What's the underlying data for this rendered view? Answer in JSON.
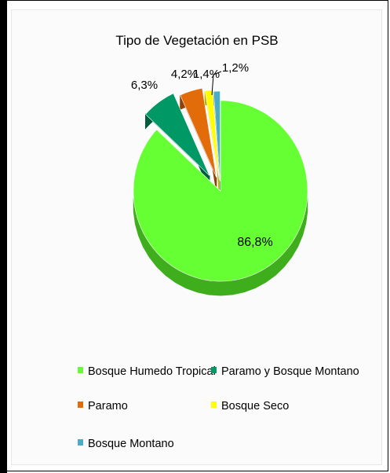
{
  "chart_data": {
    "type": "pie",
    "title": "Tipo de Vegetación en PSB",
    "slices": [
      {
        "label": "Bosque Humedo Tropical",
        "value": 86.8,
        "display": "86,8%",
        "color": "#66ff33",
        "dark": "#3fae1c"
      },
      {
        "label": "Paramo y Bosque Montano",
        "value": 6.3,
        "display": "6,3%",
        "color": "#009966",
        "dark": "#005c3d"
      },
      {
        "label": "Paramo",
        "value": 4.2,
        "display": "4,2%",
        "color": "#e26b0a",
        "dark": "#8f4206"
      },
      {
        "label": "Bosque Seco",
        "value": 1.4,
        "display": "1,4%",
        "color": "#ffff00",
        "dark": "#b3b300"
      },
      {
        "label": "Bosque Montano",
        "value": 1.2,
        "display": "1,2%",
        "color": "#4bacc6",
        "dark": "#2e7285"
      }
    ],
    "legend_position": "bottom"
  }
}
